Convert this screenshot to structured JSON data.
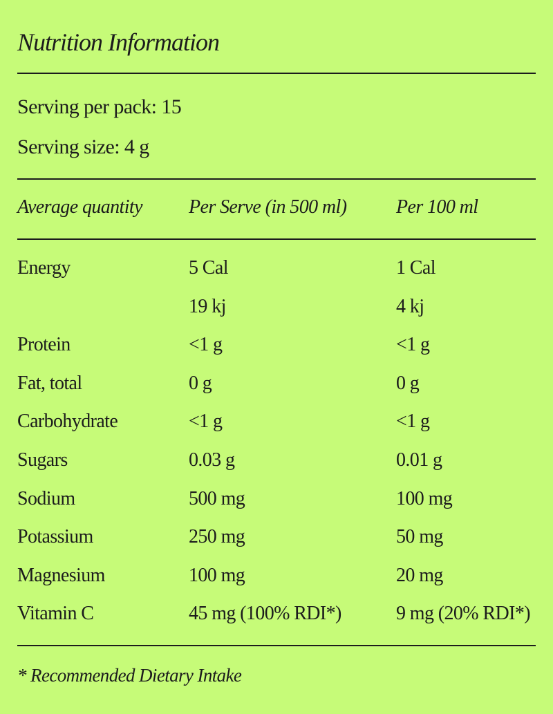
{
  "title": "Nutrition Information",
  "serving_per_pack": "Serving per pack: 15",
  "serving_size": "Serving size: 4 g",
  "headers": [
    "Average quantity",
    "Per Serve (in 500 ml)",
    "Per 100 ml"
  ],
  "rows": [
    [
      "Energy",
      "5 Cal",
      "1 Cal"
    ],
    [
      "",
      "19 kj",
      "4 kj"
    ],
    [
      "Protein",
      "<1 g",
      "<1 g"
    ],
    [
      "Fat, total",
      "0 g",
      "0 g"
    ],
    [
      "Carbohydrate",
      "<1 g",
      "<1 g"
    ],
    [
      "Sugars",
      "0.03 g",
      "0.01 g"
    ],
    [
      "Sodium",
      "500 mg",
      "100 mg"
    ],
    [
      "Potassium",
      "250 mg",
      "50 mg"
    ],
    [
      "Magnesium",
      "100 mg",
      "20 mg"
    ],
    [
      "Vitamin C",
      "45 mg (100% RDI*)",
      "9 mg (20% RDI*)"
    ]
  ],
  "footnote": "* Recommended Dietary Intake",
  "colors": {
    "background": "#c6fb78",
    "text": "#1c1c1c"
  }
}
